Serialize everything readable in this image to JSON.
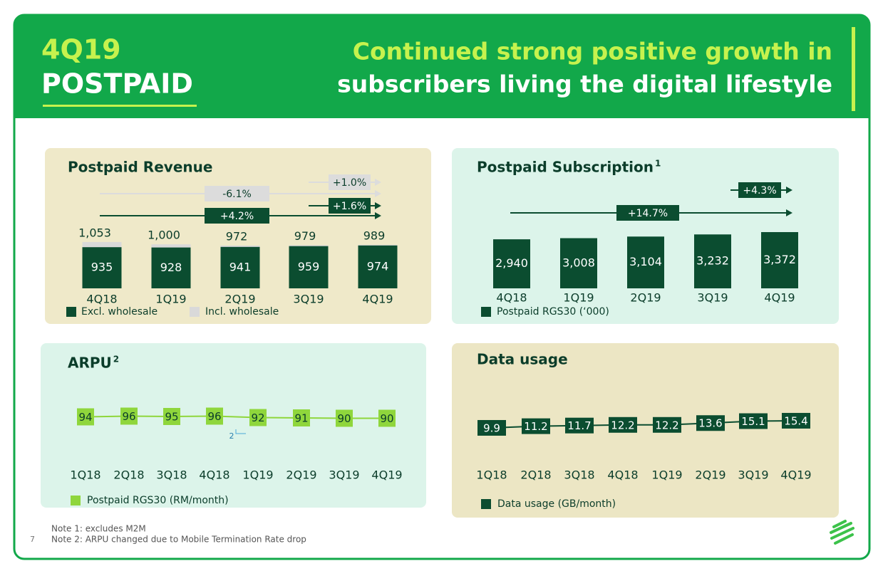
{
  "header": {
    "quarter": "4Q19",
    "title": "POSTPAID",
    "headline": [
      "Continued strong positive growth in",
      "subscribers living the digital lifestyle"
    ]
  },
  "chart_data": [
    {
      "type": "bar",
      "title": "Postpaid Revenue",
      "categories": [
        "4Q18",
        "1Q19",
        "2Q19",
        "3Q19",
        "4Q19"
      ],
      "series": [
        {
          "name": "Excl. wholesale",
          "color": "#0b4d30",
          "values": [
            935,
            928,
            941,
            959,
            974
          ]
        },
        {
          "name": "Incl. wholesale",
          "color": "#d9d9d9",
          "values": [
            1053,
            1000,
            972,
            979,
            989
          ],
          "value_labels": [
            "1,053",
            "1,000",
            "972",
            "979",
            "989"
          ]
        }
      ],
      "ylim": [
        0,
        1100
      ],
      "annotations": [
        "-6.1%",
        "+4.2%",
        "+1.0%",
        "+1.6%"
      ]
    },
    {
      "type": "bar",
      "title": "Postpaid Subscription",
      "title_note": "1",
      "categories": [
        "4Q18",
        "1Q19",
        "2Q19",
        "3Q19",
        "4Q19"
      ],
      "series": [
        {
          "name": "Postpaid RGS30 (‘000)",
          "color": "#0b4d30",
          "values": [
            2940,
            3008,
            3104,
            3232,
            3372
          ],
          "value_labels": [
            "2,940",
            "3,008",
            "3,104",
            "3,232",
            "3,372"
          ]
        }
      ],
      "ylim": [
        0,
        3500
      ],
      "annotations": [
        "+14.7%",
        "+4.3%"
      ]
    },
    {
      "type": "line",
      "title": "ARPU",
      "title_note": "2",
      "categories": [
        "1Q18",
        "2Q18",
        "3Q18",
        "4Q18",
        "1Q19",
        "2Q19",
        "3Q19",
        "4Q19"
      ],
      "series": [
        {
          "name": "Postpaid RGS30 (RM/month)",
          "color": "#8fd63c",
          "values": [
            94,
            96,
            95,
            96,
            92,
            91,
            90,
            90
          ]
        }
      ],
      "ylim": [
        0,
        200
      ],
      "annotations": [
        "2"
      ]
    },
    {
      "type": "line",
      "title": "Data usage",
      "categories": [
        "1Q18",
        "2Q18",
        "3Q18",
        "4Q18",
        "1Q19",
        "2Q19",
        "3Q19",
        "4Q19"
      ],
      "series": [
        {
          "name": "Data usage (GB/month)",
          "color": "#0b4d30",
          "values": [
            9.9,
            11.2,
            11.7,
            12.2,
            12.2,
            13.6,
            15.1,
            15.4
          ]
        }
      ],
      "ylim": [
        0,
        50
      ],
      "annotations": []
    }
  ],
  "notes": [
    "Note 1: excludes M2M",
    "Note 2: ARPU changed due to Mobile Termination Rate drop"
  ],
  "page_number": "7"
}
